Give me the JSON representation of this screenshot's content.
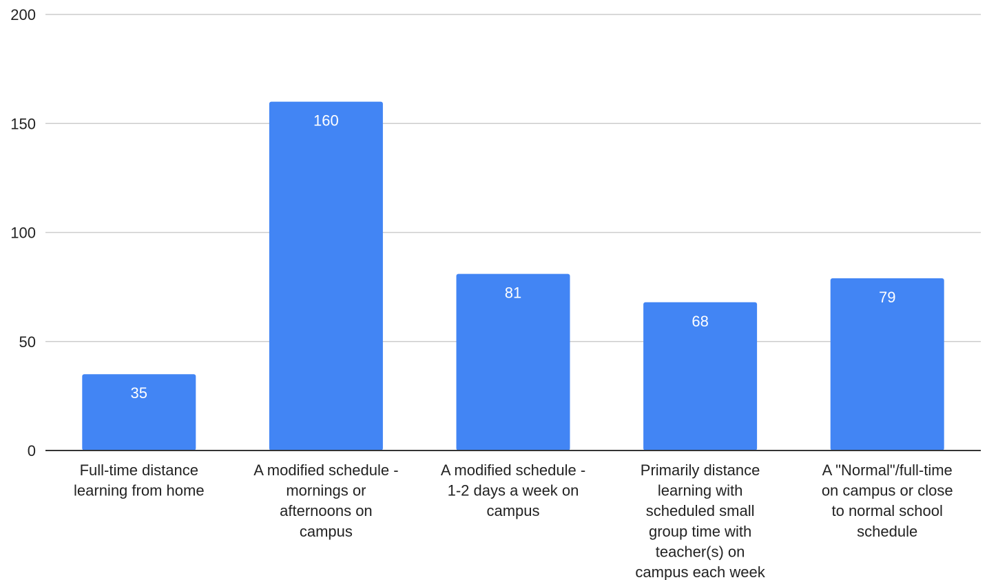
{
  "chart_data": {
    "type": "bar",
    "title": "",
    "xlabel": "",
    "ylabel": "",
    "ylim": [
      0,
      200
    ],
    "yticks": [
      0,
      50,
      100,
      150,
      200
    ],
    "ytick_labels": [
      "0",
      "50",
      "100",
      "150",
      "200"
    ],
    "grid": true,
    "legend": "none",
    "bar_color": "#4285f4",
    "data_label_color": "#ffffff",
    "categories": [
      [
        "Full-time distance",
        "learning from home"
      ],
      [
        "A modified schedule -",
        "mornings or",
        "afternoons on",
        "campus"
      ],
      [
        "A modified schedule -",
        "1-2 days a week on",
        "campus"
      ],
      [
        "Primarily distance",
        "learning with",
        "scheduled small",
        "group time with",
        "teacher(s) on",
        "campus each week"
      ],
      [
        "A \"Normal\"/full-time",
        "on campus or close",
        "to normal school",
        "schedule"
      ]
    ],
    "values": [
      35,
      160,
      81,
      68,
      79
    ],
    "data_labels": [
      "35",
      "160",
      "81",
      "68",
      "79"
    ]
  }
}
